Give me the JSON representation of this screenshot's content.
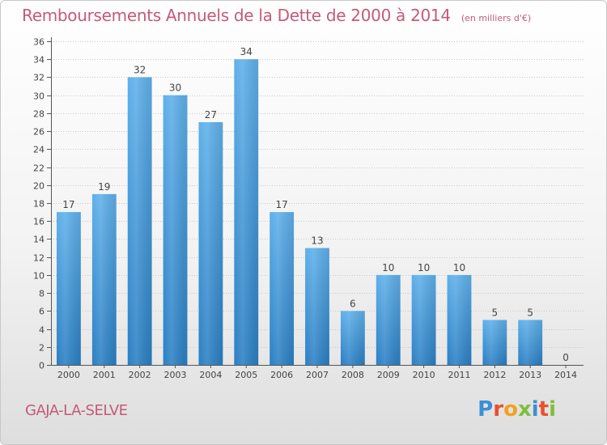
{
  "header": {
    "title": "Remboursements Annuels de la Dette de 2000 à 2014",
    "unit": "(en milliers d'€)"
  },
  "footer": {
    "commune": "GAJA-LA-SELVE",
    "brand": "Proxiti"
  },
  "colors": {
    "accent": "#c45a78",
    "bar_top": "#5fb0ea",
    "bar_bottom": "#2a7fc4",
    "grid": "#c8c8c8"
  },
  "chart_data": {
    "type": "bar",
    "title": "Remboursements Annuels de la Dette de 2000 à 2014",
    "xlabel": "",
    "ylabel": "en milliers d'€",
    "categories": [
      "2000",
      "2001",
      "2002",
      "2003",
      "2004",
      "2005",
      "2006",
      "2007",
      "2008",
      "2009",
      "2010",
      "2011",
      "2012",
      "2013",
      "2014"
    ],
    "values": [
      17,
      19,
      32,
      30,
      27,
      34,
      17,
      13,
      6,
      10,
      10,
      10,
      5,
      5,
      0
    ],
    "ylim": [
      0,
      36
    ],
    "yticks": [
      0,
      2,
      4,
      6,
      8,
      10,
      12,
      14,
      16,
      18,
      20,
      22,
      24,
      26,
      28,
      30,
      32,
      34,
      36
    ],
    "grid": true
  }
}
